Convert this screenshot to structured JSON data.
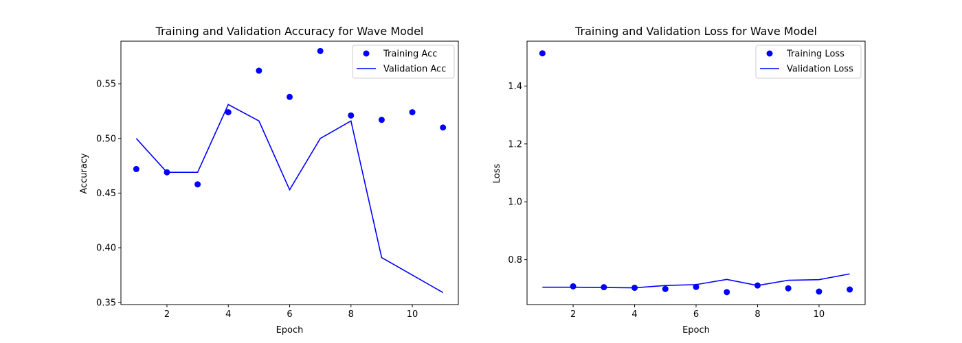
{
  "chart_data": [
    {
      "type": "line",
      "title": "Training and Validation Accuracy for Wave Model",
      "xlabel": "Epoch",
      "ylabel": "Accuracy",
      "xlim": [
        0.5,
        11.5
      ],
      "ylim": [
        0.348,
        0.589
      ],
      "xticks": [
        2,
        4,
        6,
        8,
        10
      ],
      "yticks": [
        0.35,
        0.4,
        0.45,
        0.5,
        0.55
      ],
      "ytick_labels": [
        "0.35",
        "0.40",
        "0.45",
        "0.50",
        "0.55"
      ],
      "legend_position": "upper right",
      "grid": false,
      "x": [
        1,
        2,
        3,
        4,
        5,
        6,
        7,
        8,
        9,
        10,
        11
      ],
      "series": [
        {
          "name": "Training Acc",
          "style": "scatter",
          "color": "#0000ff",
          "values": [
            0.472,
            0.469,
            0.458,
            0.524,
            0.562,
            0.538,
            0.58,
            0.521,
            0.517,
            0.524,
            0.51
          ]
        },
        {
          "name": "Validation Acc",
          "style": "line",
          "color": "#0000ff",
          "values": [
            0.5,
            0.469,
            0.469,
            0.531,
            0.516,
            0.453,
            0.5,
            0.516,
            0.391,
            0.375,
            0.359
          ]
        }
      ]
    },
    {
      "type": "line",
      "title": "Training and Validation Loss for Wave Model",
      "xlabel": "Epoch",
      "ylabel": "Loss",
      "xlim": [
        0.5,
        11.5
      ],
      "ylim": [
        0.645,
        1.555
      ],
      "xticks": [
        2,
        4,
        6,
        8,
        10
      ],
      "yticks": [
        0.8,
        1.0,
        1.2,
        1.4
      ],
      "ytick_labels": [
        "0.8",
        "1.0",
        "1.2",
        "1.4"
      ],
      "legend_position": "upper right",
      "grid": false,
      "x": [
        1,
        2,
        3,
        4,
        5,
        6,
        7,
        8,
        9,
        10,
        11
      ],
      "series": [
        {
          "name": "Training Loss",
          "style": "scatter",
          "color": "#0000ff",
          "values": [
            1.513,
            0.708,
            0.705,
            0.703,
            0.699,
            0.706,
            0.688,
            0.711,
            0.701,
            0.69,
            0.697
          ]
        },
        {
          "name": "Validation Loss",
          "style": "line",
          "color": "#0000ff",
          "values": [
            0.705,
            0.705,
            0.704,
            0.703,
            0.711,
            0.714,
            0.732,
            0.711,
            0.729,
            0.731,
            0.751
          ]
        }
      ]
    }
  ]
}
